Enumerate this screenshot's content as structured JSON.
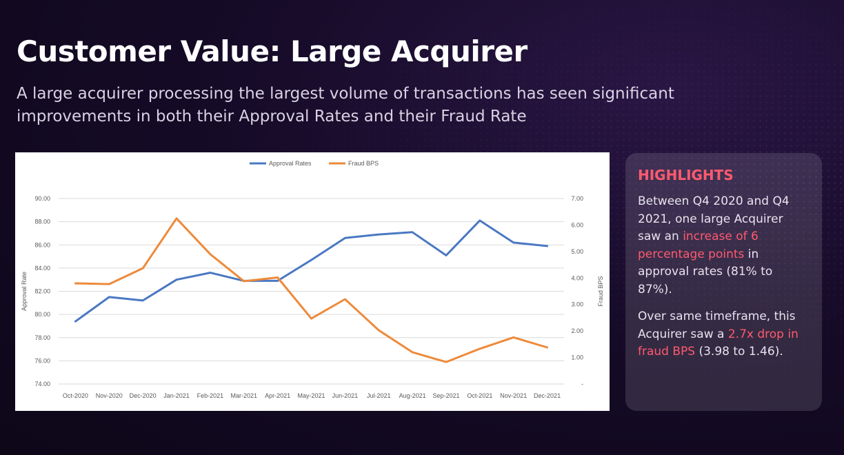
{
  "slide": {
    "title": "Customer Value: Large Acquirer",
    "subtitle": "A large acquirer processing the largest volume of transactions has seen significant improvements in both their Approval Rates and their Fraud Rate"
  },
  "highlights": {
    "heading": "HIGHLIGHTS",
    "p1_a": "Between Q4 2020 and Q4 2021, one large Acquirer saw an ",
    "p1_accent": "increase of 6 percentage points",
    "p1_b": " in approval rates (81% to 87%).",
    "p2_a": "Over same timeframe, this Acquirer saw a ",
    "p2_accent": "2.7x drop in fraud BPS",
    "p2_b": " (3.98 to 1.46)."
  },
  "colors": {
    "accent": "#ff5a6e",
    "approval_series": "#4a78c2",
    "fraud_series": "#ed8a3b"
  },
  "chart_data": {
    "type": "line",
    "title": "",
    "categories": [
      "Oct-2020",
      "Nov-2020",
      "Dec-2020",
      "Jan-2021",
      "Feb-2021",
      "Mar-2021",
      "Apr-2021",
      "May-2021",
      "Jun-2021",
      "Jul-2021",
      "Aug-2021",
      "Sep-2021",
      "Oct-2021",
      "Nov-2021",
      "Dec-2021"
    ],
    "series": [
      {
        "name": "Approval Rates",
        "axis": "left",
        "color": "#4a78c2",
        "values": [
          79.4,
          81.5,
          81.2,
          83.0,
          83.6,
          82.9,
          82.9,
          84.7,
          86.6,
          86.9,
          87.1,
          85.1,
          88.1,
          86.2,
          85.9
        ]
      },
      {
        "name": "Fraud BPS",
        "axis": "right",
        "color": "#ed8a3b",
        "values": [
          3.8,
          3.77,
          4.37,
          6.25,
          4.9,
          3.88,
          4.02,
          2.47,
          3.2,
          2.03,
          1.2,
          0.83,
          1.33,
          1.76,
          1.38
        ]
      }
    ],
    "ylabel": "Approval Rate",
    "y2label": "Fraud BPS",
    "ylim": [
      74,
      90
    ],
    "yticks": [
      "74.00",
      "76.00",
      "78.00",
      "80.00",
      "82.00",
      "84.00",
      "86.00",
      "88.00",
      "90.00"
    ],
    "y2lim": [
      0,
      7
    ],
    "y2ticks": [
      "-",
      "1.00",
      "2.00",
      "3.00",
      "4.00",
      "5.00",
      "6.00",
      "7.00"
    ],
    "legend_position": "top-center",
    "grid": true
  }
}
